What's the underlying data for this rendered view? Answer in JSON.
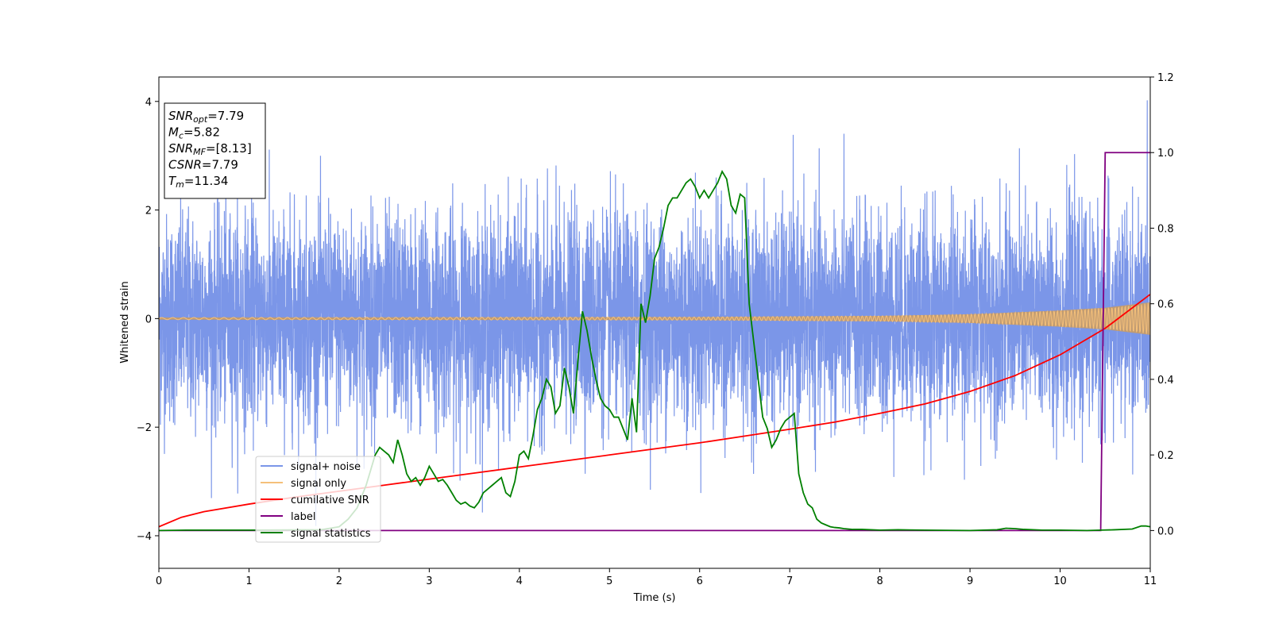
{
  "chart_data": {
    "type": "line",
    "xlabel": "Time (s)",
    "ylabel": "Whitened strain",
    "xlim": [
      0,
      11
    ],
    "ylim_left": [
      -4.6,
      4.45
    ],
    "ylim_right": [
      -0.1,
      1.2
    ],
    "x_ticks": [
      0,
      1,
      2,
      3,
      4,
      5,
      6,
      7,
      8,
      9,
      10,
      11
    ],
    "y_ticks_left": [
      -4,
      -2,
      0,
      2,
      4
    ],
    "y_ticks_right": [
      0.0,
      0.2,
      0.4,
      0.6,
      0.8,
      1.0,
      1.2
    ],
    "grid": false,
    "legend_position": "lower-left",
    "info_box": {
      "lines": [
        {
          "main": "SNR",
          "sub": "opt",
          "value": "=7.79"
        },
        {
          "main": "M",
          "sub": "c",
          "value": "=5.82"
        },
        {
          "main": "SNR",
          "sub": "MF",
          "value": "=[8.13]"
        },
        {
          "main": "CSNR",
          "sub": "",
          "value": "=7.79"
        },
        {
          "main": "T",
          "sub": "m",
          "value": "=11.34"
        }
      ]
    },
    "series": [
      {
        "name": "signal+ noise",
        "axis": "left",
        "color": "#7b96e8",
        "description_stats": {
          "mean": 0,
          "std": 0.95,
          "max": 4.02,
          "min": -4.15
        }
      },
      {
        "name": "signal only",
        "axis": "left",
        "color": "#f5c07a",
        "envelope": {
          "x": [
            0,
            6,
            8,
            9,
            10,
            10.5,
            11
          ],
          "amplitude": [
            0.02,
            0.03,
            0.05,
            0.08,
            0.15,
            0.2,
            0.3
          ]
        }
      },
      {
        "name": "cumilative SNR",
        "axis": "right",
        "color": "#ff0000",
        "x": [
          0,
          0.25,
          0.5,
          1,
          1.5,
          2,
          2.5,
          3,
          3.5,
          4,
          4.5,
          5,
          5.5,
          6,
          6.5,
          7,
          7.5,
          8,
          8.5,
          9,
          9.5,
          10,
          10.5,
          11
        ],
        "y": [
          0.01,
          0.035,
          0.05,
          0.07,
          0.088,
          0.104,
          0.12,
          0.136,
          0.152,
          0.168,
          0.184,
          0.2,
          0.216,
          0.232,
          0.25,
          0.268,
          0.287,
          0.31,
          0.335,
          0.368,
          0.41,
          0.465,
          0.535,
          0.625
        ]
      },
      {
        "name": "label",
        "axis": "right",
        "color": "#800080",
        "x": [
          0,
          10.45,
          10.5,
          11
        ],
        "y": [
          0,
          0,
          1,
          1
        ]
      },
      {
        "name": "signal statistics",
        "axis": "right",
        "color": "#008000",
        "x": [
          0,
          0.3,
          1,
          1.8,
          2.0,
          2.1,
          2.2,
          2.3,
          2.35,
          2.4,
          2.45,
          2.5,
          2.55,
          2.6,
          2.65,
          2.7,
          2.75,
          2.8,
          2.85,
          2.9,
          2.95,
          3.0,
          3.05,
          3.1,
          3.15,
          3.2,
          3.25,
          3.3,
          3.35,
          3.4,
          3.45,
          3.5,
          3.55,
          3.6,
          3.65,
          3.7,
          3.75,
          3.8,
          3.85,
          3.9,
          3.95,
          4.0,
          4.05,
          4.1,
          4.15,
          4.2,
          4.25,
          4.3,
          4.35,
          4.4,
          4.45,
          4.5,
          4.55,
          4.6,
          4.65,
          4.7,
          4.75,
          4.8,
          4.85,
          4.9,
          4.95,
          5.0,
          5.05,
          5.1,
          5.15,
          5.2,
          5.25,
          5.3,
          5.35,
          5.4,
          5.45,
          5.5,
          5.55,
          5.6,
          5.65,
          5.7,
          5.75,
          5.8,
          5.85,
          5.9,
          5.95,
          6.0,
          6.05,
          6.1,
          6.15,
          6.2,
          6.25,
          6.3,
          6.35,
          6.4,
          6.45,
          6.5,
          6.55,
          6.6,
          6.65,
          6.7,
          6.75,
          6.8,
          6.85,
          6.9,
          6.95,
          7.0,
          7.05,
          7.1,
          7.15,
          7.2,
          7.25,
          7.3,
          7.35,
          7.4,
          7.45,
          7.5,
          7.55,
          7.6,
          7.7,
          7.8,
          7.9,
          8.0,
          8.2,
          8.5,
          9.0,
          9.3,
          9.4,
          9.5,
          9.6,
          9.8,
          10.0,
          10.3,
          10.45,
          10.6,
          10.8,
          10.9,
          10.95,
          11.0
        ],
        "y": [
          0.0,
          0.001,
          0.001,
          0.002,
          0.01,
          0.03,
          0.06,
          0.12,
          0.16,
          0.2,
          0.22,
          0.21,
          0.2,
          0.18,
          0.24,
          0.2,
          0.15,
          0.13,
          0.14,
          0.12,
          0.14,
          0.17,
          0.15,
          0.13,
          0.135,
          0.12,
          0.1,
          0.08,
          0.07,
          0.075,
          0.065,
          0.06,
          0.075,
          0.1,
          0.11,
          0.12,
          0.13,
          0.14,
          0.1,
          0.09,
          0.13,
          0.2,
          0.21,
          0.19,
          0.25,
          0.32,
          0.35,
          0.4,
          0.38,
          0.31,
          0.33,
          0.43,
          0.38,
          0.31,
          0.45,
          0.58,
          0.53,
          0.46,
          0.4,
          0.35,
          0.33,
          0.32,
          0.3,
          0.3,
          0.27,
          0.24,
          0.35,
          0.26,
          0.6,
          0.55,
          0.62,
          0.72,
          0.75,
          0.8,
          0.86,
          0.88,
          0.88,
          0.9,
          0.92,
          0.93,
          0.91,
          0.88,
          0.9,
          0.88,
          0.9,
          0.92,
          0.95,
          0.93,
          0.86,
          0.84,
          0.89,
          0.88,
          0.6,
          0.5,
          0.4,
          0.3,
          0.27,
          0.22,
          0.24,
          0.27,
          0.29,
          0.3,
          0.31,
          0.15,
          0.1,
          0.07,
          0.06,
          0.03,
          0.02,
          0.015,
          0.01,
          0.008,
          0.007,
          0.005,
          0.003,
          0.003,
          0.002,
          0.001,
          0.002,
          0.001,
          0.0,
          0.002,
          0.006,
          0.005,
          0.003,
          0.001,
          0.001,
          0.0,
          0.001,
          0.002,
          0.004,
          0.012,
          0.012,
          0.01
        ]
      }
    ]
  }
}
